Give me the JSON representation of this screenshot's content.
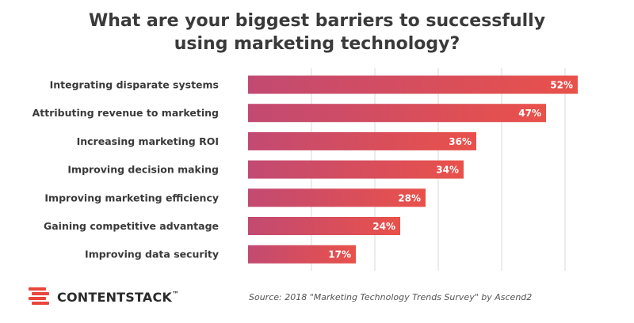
{
  "title_lines": [
    "What are your biggest barriers to successfully",
    "using marketing technology?"
  ],
  "source": "Source: 2018 \"Marketing Technology Trends Survey\" by Ascend2",
  "brand": {
    "name": "CONTENTSTACK",
    "trademark": "™",
    "logo_icon": "contentstack-logo-icon"
  },
  "colors": {
    "bar_start": "#c24a72",
    "bar_end": "#e9514a",
    "grid": "#d9d9d9",
    "label_text": "#3a3a3a",
    "value_text": "#ffffff"
  },
  "chart_data": {
    "type": "bar",
    "orientation": "horizontal",
    "categories": [
      "Integrating disparate systems",
      "Attributing revenue to marketing",
      "Increasing marketing ROI",
      "Improving decision making",
      "Improving marketing efficiency",
      "Gaining competitive advantage",
      "Improving data security"
    ],
    "values": [
      52,
      47,
      36,
      34,
      28,
      24,
      17
    ],
    "value_labels": [
      "52%",
      "47%",
      "36%",
      "34%",
      "28%",
      "24%",
      "17%"
    ],
    "xlim": [
      0,
      60
    ],
    "grid": true,
    "legend": "none"
  }
}
